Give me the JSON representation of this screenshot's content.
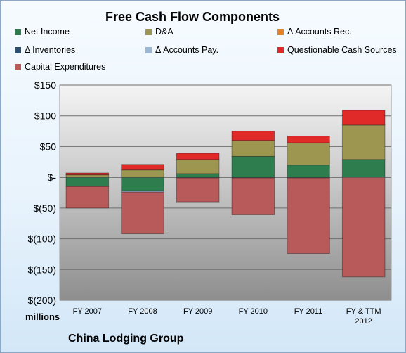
{
  "chart_data": {
    "type": "bar",
    "stacked": true,
    "title": "Free Cash Flow Components",
    "categories": [
      "FY 2007",
      "FY 2008",
      "FY 2009",
      "FY 2010",
      "FY 2011",
      "FY & TTM 2012"
    ],
    "ylim": [
      -200,
      150
    ],
    "yticks": [
      {
        "value": 150,
        "label": "$150"
      },
      {
        "value": 100,
        "label": "$100"
      },
      {
        "value": 50,
        "label": "$50"
      },
      {
        "value": 0,
        "label": "$-"
      },
      {
        "value": -50,
        "label": "$(50)"
      },
      {
        "value": -100,
        "label": "$(100)"
      },
      {
        "value": -150,
        "label": "$(150)"
      },
      {
        "value": -200,
        "label": "$(200)"
      }
    ],
    "grid": true,
    "legend_position": "top",
    "series": [
      {
        "name": "Net Income",
        "color": "#2e7d4f",
        "values": [
          -15,
          -22,
          6,
          34,
          20,
          29
        ]
      },
      {
        "name": "D&A",
        "color": "#9c9650",
        "values": [
          4,
          12,
          23,
          26,
          36,
          56
        ]
      },
      {
        "name": "Δ Accounts Rec.",
        "color": "#e8821e",
        "values": [
          0,
          0,
          0,
          0,
          0,
          0
        ]
      },
      {
        "name": "Δ Inventories",
        "color": "#2f4f6f",
        "values": [
          0,
          0,
          -1,
          -1,
          -1,
          0
        ]
      },
      {
        "name": "Δ Accounts Pay.",
        "color": "#9bb7d4",
        "values": [
          0,
          -2,
          0,
          0,
          0,
          0
        ]
      },
      {
        "name": "Questionable Cash Sources",
        "color": "#e02a2a",
        "values": [
          3,
          9,
          10,
          15,
          11,
          24
        ]
      },
      {
        "name": "Capital Expenditures",
        "color": "#b85a5a",
        "values": [
          -35,
          -68,
          -39,
          -60,
          -123,
          -162
        ]
      }
    ]
  },
  "units_label": "millions",
  "company_label": "China Lodging Group"
}
